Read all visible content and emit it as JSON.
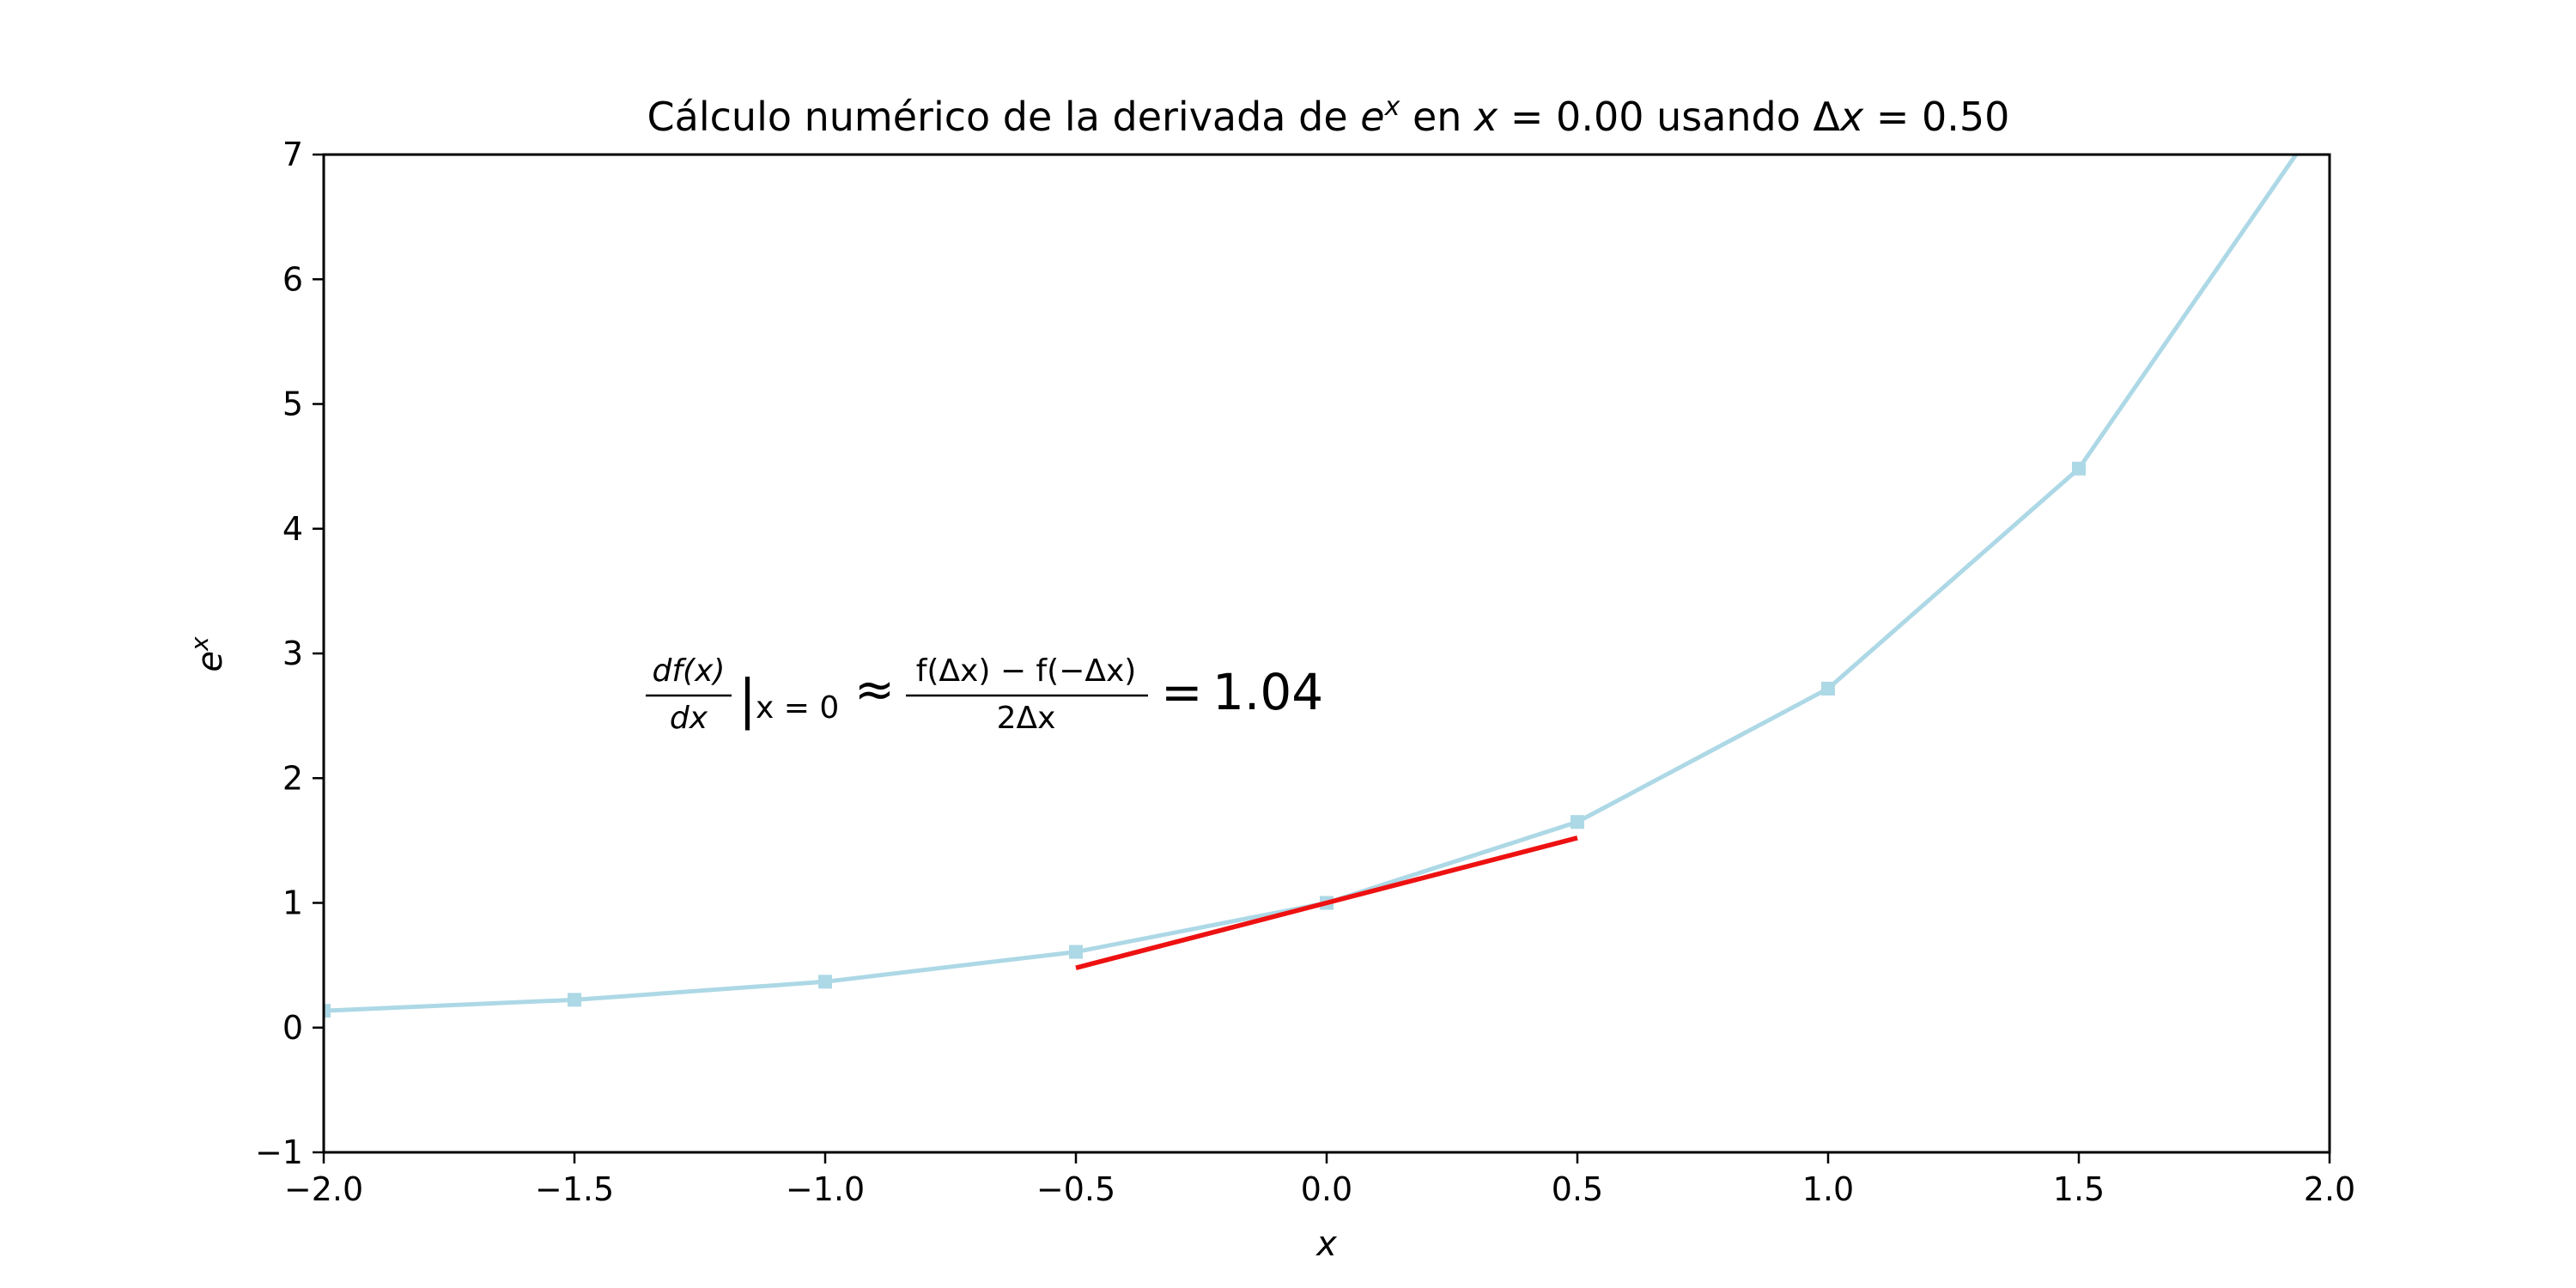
{
  "chart_data": {
    "type": "line",
    "title": {
      "prefix": "Cálculo numérico de la derivada de ",
      "base": "e",
      "sup": "x",
      "mid1": " en ",
      "var1": "x",
      "mid2": " = 0.00 usando Δ",
      "var2": "x",
      "end": " = 0.50"
    },
    "xlabel": "x",
    "ylabel": {
      "base": "e",
      "sup": "x"
    },
    "xlim": [
      -2.0,
      2.0
    ],
    "ylim": [
      -1,
      7
    ],
    "x_ticks": [
      "−2.0",
      "−1.5",
      "−1.0",
      "−0.5",
      "0.0",
      "0.5",
      "1.0",
      "1.5",
      "2.0"
    ],
    "x_tick_values": [
      -2.0,
      -1.5,
      -1.0,
      -0.5,
      0.0,
      0.5,
      1.0,
      1.5,
      2.0
    ],
    "y_ticks": [
      "−1",
      "0",
      "1",
      "2",
      "3",
      "4",
      "5",
      "6",
      "7"
    ],
    "y_tick_values": [
      -1,
      0,
      1,
      2,
      3,
      4,
      5,
      6,
      7
    ],
    "grid": false,
    "series": [
      {
        "color": "#add8e6",
        "marker": "square",
        "x": [
          -2.0,
          -1.5,
          -1.0,
          -0.5,
          0.0,
          0.5,
          1.0,
          1.5,
          2.0
        ],
        "y": [
          0.135,
          0.223,
          0.368,
          0.607,
          1.0,
          1.649,
          2.718,
          4.482,
          7.389
        ]
      },
      {
        "color": "#ee1111",
        "x": [
          -0.5,
          0.5
        ],
        "y": [
          0.479,
          1.521
        ]
      }
    ],
    "annotation": {
      "frac1_num": "df(x)",
      "frac1_den": "dx",
      "eval_sub": "x = 0",
      "approx": "≈",
      "frac2_num": "f(Δx) − f(−Δx)",
      "frac2_den": "2Δx",
      "equals": "=",
      "value": "1.04"
    }
  }
}
